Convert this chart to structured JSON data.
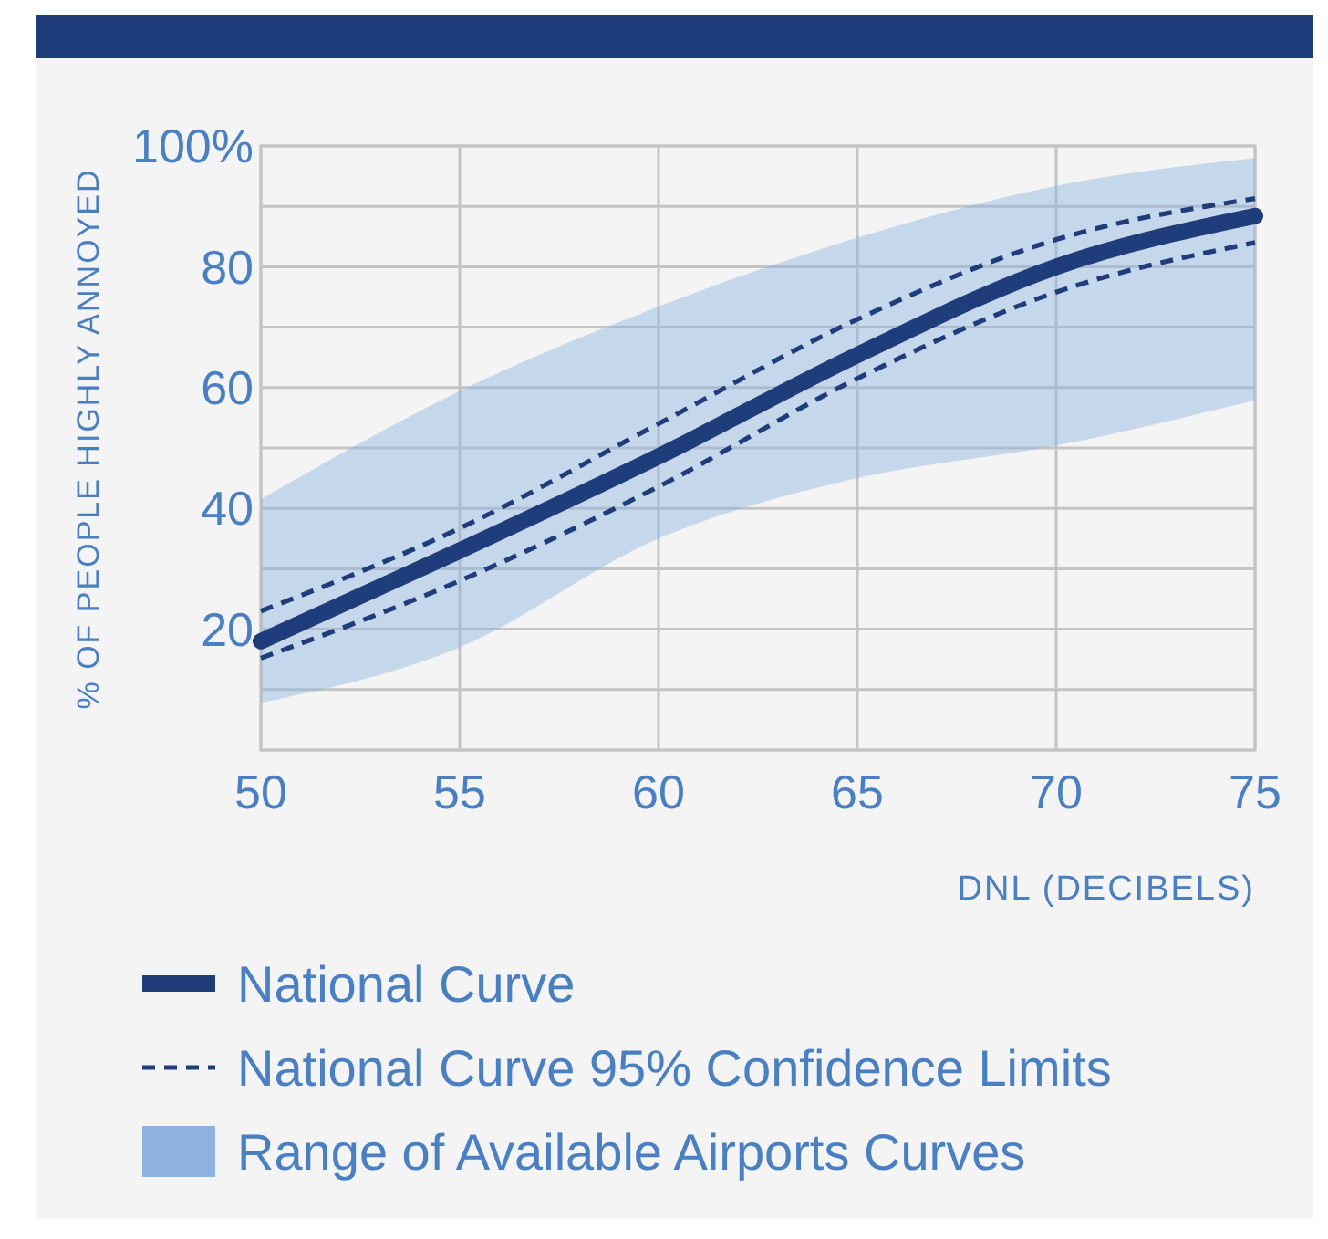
{
  "chart_data": {
    "type": "line",
    "xlabel": "DNL (DECIBELS)",
    "ylabel": "% OF PEOPLE HIGHLY ANNOYED",
    "x": [
      50,
      55,
      60,
      65,
      70,
      75
    ],
    "xlim": [
      50,
      75
    ],
    "xticks": [
      50,
      55,
      60,
      65,
      70,
      75
    ],
    "ylim": [
      0,
      100
    ],
    "yticks": [
      {
        "value": 0,
        "label": null
      },
      {
        "value": 10,
        "label": null
      },
      20,
      {
        "value": 30,
        "label": null
      },
      40,
      {
        "value": 50,
        "label": null
      },
      60,
      {
        "value": 70,
        "label": null
      },
      80,
      {
        "value": 90,
        "label": null
      },
      {
        "value": 100,
        "label": "100%"
      }
    ],
    "grid": true,
    "legend": "bottom",
    "series": [
      {
        "name": "Range of Available Airports Curves",
        "color": "#8fb3e0",
        "values": [
          null,
          null,
          null,
          null,
          null,
          null
        ],
        "lower": [
          7.8,
          17,
          35,
          45,
          50.4,
          57.9
        ],
        "upper": [
          41.5,
          59.4,
          73.4,
          84.8,
          93.4,
          98
        ]
      },
      {
        "name": "National Curve",
        "color": "#1f3d7a",
        "line_style": "solid",
        "values": [
          18,
          33,
          48.6,
          65.4,
          80,
          88.4
        ]
      },
      {
        "name": "National Curve 95% Confidence Limits",
        "color": "#1f3d7a",
        "line_style": "dashed",
        "values": [
          23,
          36.7,
          54,
          71.3,
          84.5,
          91.3
        ]
      },
      {
        "color": "#1f3d7a",
        "line_style": "dashed",
        "values": [
          15.2,
          28,
          43.6,
          61.5,
          75.8,
          84
        ]
      }
    ]
  }
}
